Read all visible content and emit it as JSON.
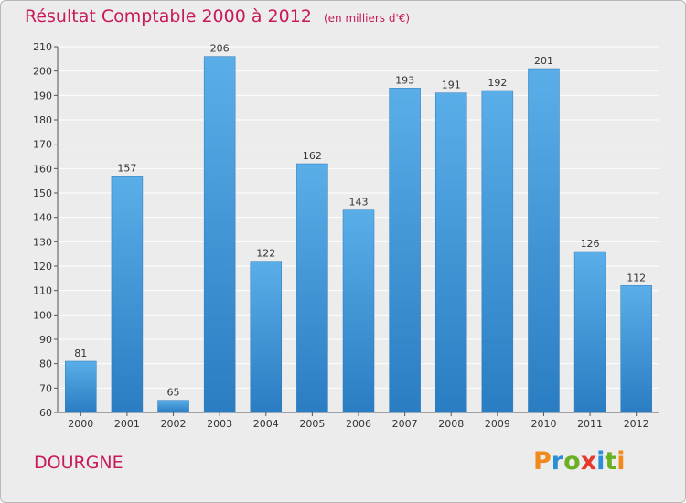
{
  "title": "Résultat Comptable 2000 à 2012",
  "unit": "(en milliers d'€)",
  "place": "DOURGNE",
  "brand": "Proxiti",
  "colors": {
    "title": "#c8195a",
    "bar_top": "#5aaee8",
    "bar_bottom": "#2a7dc2",
    "grid": "#ffffff",
    "background": "#ececec",
    "brand_letters": [
      "#f08a1c",
      "#2a8fd6",
      "#6ab023",
      "#e63a2e",
      "#2a8fd6",
      "#6ab023",
      "#f08a1c"
    ]
  },
  "chart_data": {
    "type": "bar",
    "title": "Résultat Comptable 2000 à 2012",
    "subtitle": "(en milliers d'€)",
    "xlabel": "",
    "ylabel": "",
    "categories": [
      "2000",
      "2001",
      "2002",
      "2003",
      "2004",
      "2005",
      "2006",
      "2007",
      "2008",
      "2009",
      "2010",
      "2011",
      "2012"
    ],
    "values": [
      81,
      157,
      65,
      206,
      122,
      162,
      143,
      193,
      191,
      192,
      201,
      126,
      112
    ],
    "ylim": [
      60,
      210
    ],
    "yticks": [
      60,
      70,
      80,
      90,
      100,
      110,
      120,
      130,
      140,
      150,
      160,
      170,
      180,
      190,
      200,
      210
    ],
    "grid": true,
    "legend": "none"
  }
}
